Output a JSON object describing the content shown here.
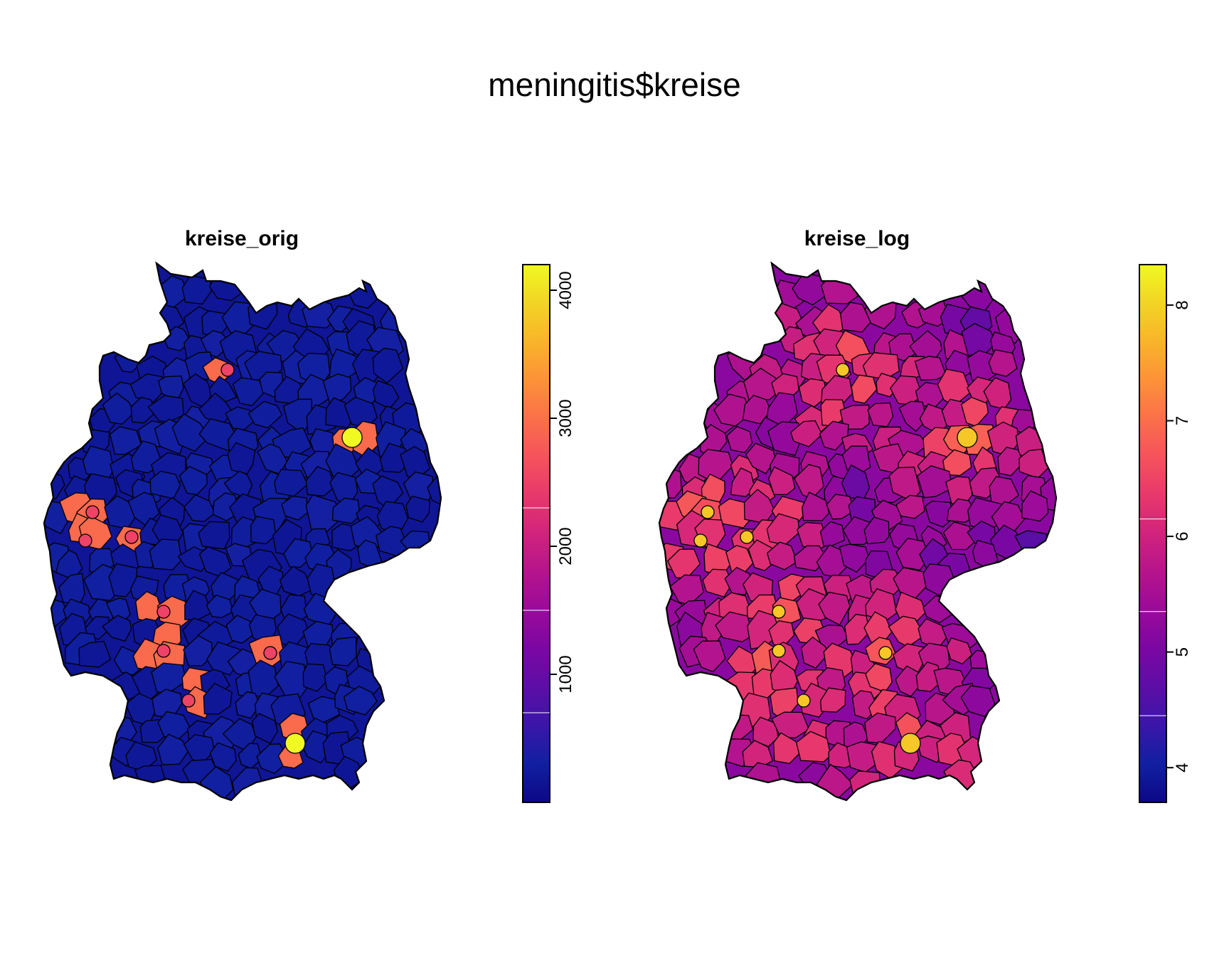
{
  "title": "meningitis$kreise",
  "colors": {
    "background": "#ffffff",
    "border": "#000000",
    "palette": [
      "#0d0887",
      "#1020a0",
      "#3a16a8",
      "#5c0ea6",
      "#7b07a3",
      "#9a0a9a",
      "#b6148c",
      "#d1237c",
      "#e8386c",
      "#f5535c",
      "#fb7049",
      "#fd9238",
      "#f9b42a",
      "#f2d425",
      "#f0f921"
    ]
  },
  "panels": [
    {
      "title": "kreise_orig",
      "legend": {
        "min": 0,
        "max": 4200,
        "ticks": [
          {
            "value": 1000,
            "label": "1000"
          },
          {
            "value": 2000,
            "label": "2000"
          },
          {
            "value": 3000,
            "label": "3000"
          },
          {
            "value": 4000,
            "label": "4000"
          }
        ],
        "separators": [
          700,
          1500,
          2300
        ]
      }
    },
    {
      "title": "kreise_log",
      "legend": {
        "min": 3.7,
        "max": 8.35,
        "ticks": [
          {
            "value": 4,
            "label": "4"
          },
          {
            "value": 5,
            "label": "5"
          },
          {
            "value": 6,
            "label": "6"
          },
          {
            "value": 7,
            "label": "7"
          },
          {
            "value": 8,
            "label": "8"
          }
        ],
        "separators": [
          4.45,
          5.35,
          6.15
        ]
      }
    }
  ]
}
